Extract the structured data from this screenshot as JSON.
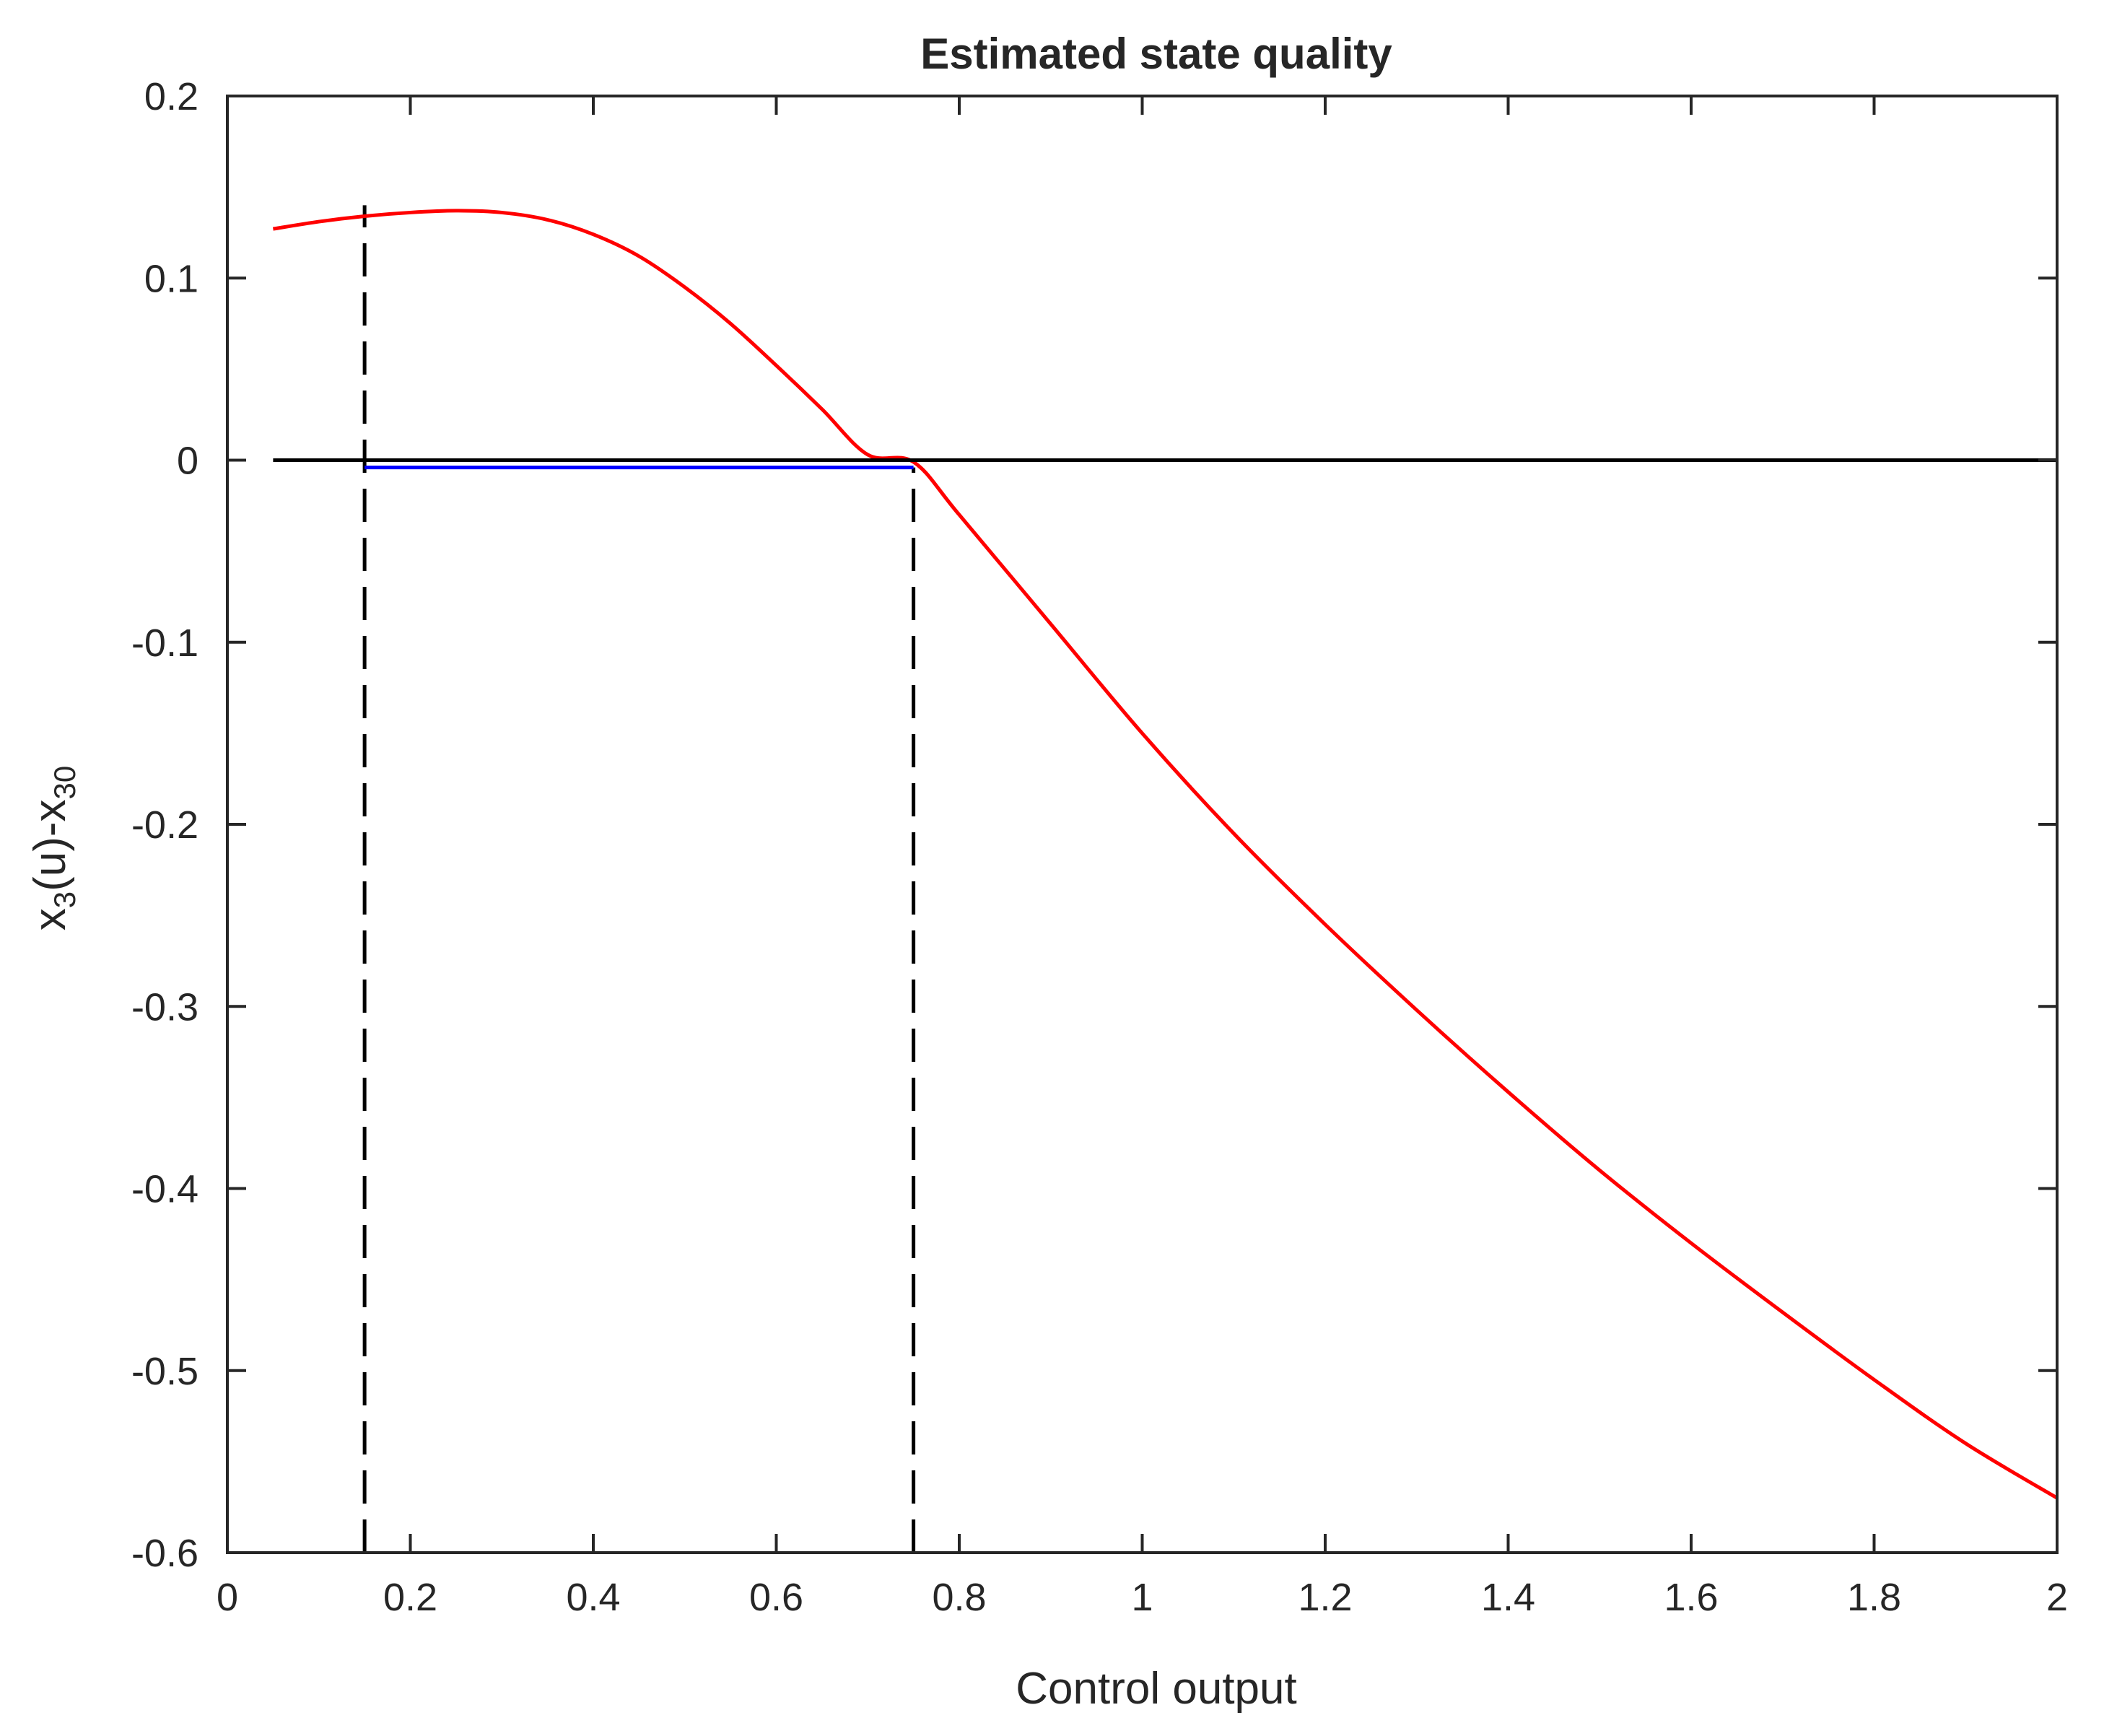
{
  "chart_data": {
    "type": "line",
    "title": "Estimated state quality",
    "xlabel": "Control output",
    "ylabel": {
      "base1": "x",
      "sub1": "3",
      "mid": "(u)-x",
      "sub2": "30"
    },
    "xlim": [
      0,
      2
    ],
    "ylim": [
      -0.6,
      0.2
    ],
    "x_ticks": [
      0,
      0.2,
      0.4,
      0.6,
      0.8,
      1,
      1.2,
      1.4,
      1.6,
      1.8,
      2
    ],
    "x_tick_labels": [
      "0",
      "0.2",
      "0.4",
      "0.6",
      "0.8",
      "1",
      "1.2",
      "1.4",
      "1.6",
      "1.8",
      "2"
    ],
    "y_ticks": [
      0.2,
      0.1,
      0,
      -0.1,
      -0.2,
      -0.3,
      -0.4,
      -0.5,
      -0.6
    ],
    "y_tick_labels": [
      "0.2",
      "0.1",
      "0",
      "-0.1",
      "-0.2",
      "-0.3",
      "-0.4",
      "-0.5",
      "-0.6"
    ],
    "grid": false,
    "box": true,
    "series": [
      {
        "color": "#ff0000",
        "style": "solid",
        "x": [
          0.05,
          0.1,
          0.15,
          0.2,
          0.25,
          0.3,
          0.35,
          0.4,
          0.45,
          0.5,
          0.55,
          0.6,
          0.65,
          0.7,
          0.75,
          0.8,
          0.9,
          1.0,
          1.1,
          1.2,
          1.3,
          1.4,
          1.5,
          1.6,
          1.7,
          1.8,
          1.9,
          2.0
        ],
        "y": [
          0.127,
          0.131,
          0.134,
          0.136,
          0.137,
          0.136,
          0.132,
          0.124,
          0.112,
          0.095,
          0.075,
          0.052,
          0.028,
          0.003,
          -0.001,
          -0.03,
          -0.09,
          -0.15,
          -0.205,
          -0.255,
          -0.302,
          -0.347,
          -0.39,
          -0.43,
          -0.468,
          -0.505,
          -0.54,
          -0.57
        ]
      },
      {
        "color": "#000000",
        "style": "solid",
        "x": [
          0.05,
          2.0
        ],
        "y": [
          0,
          0
        ]
      },
      {
        "color": "#0000ff",
        "style": "solid",
        "x": [
          0.15,
          0.75
        ],
        "y": [
          -0.004,
          -0.004
        ]
      }
    ],
    "vlines": [
      {
        "x": 0.15,
        "y_from": -0.6,
        "y_to": 0.14,
        "color": "#000000",
        "style": "dashed"
      },
      {
        "x": 0.75,
        "y_from": -0.6,
        "y_to": -0.004,
        "color": "#000000",
        "style": "dashed"
      }
    ]
  }
}
